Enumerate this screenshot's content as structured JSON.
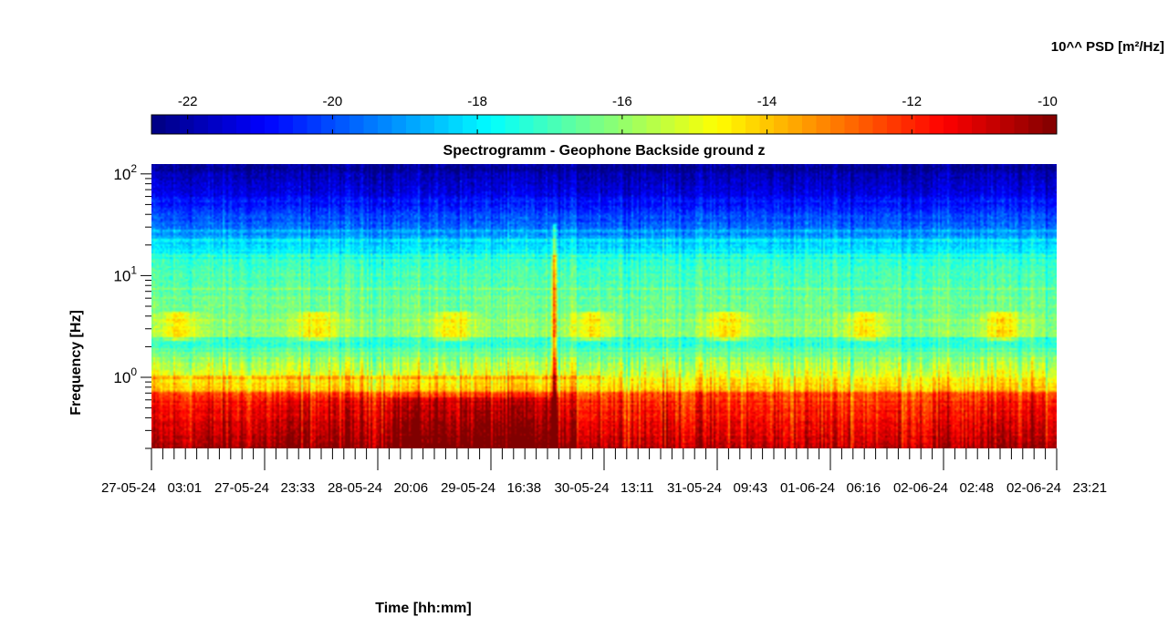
{
  "chart_data": {
    "type": "heatmap",
    "title": "Spectrogramm - Geophone Backside ground z",
    "xlabel": "Time [hh:mm]",
    "ylabel": "Frequency [Hz]",
    "yscale": "log",
    "ylim": [
      0.2,
      125
    ],
    "y_ticks": [
      {
        "value": 1,
        "base": "10",
        "exp": "0"
      },
      {
        "value": 10,
        "base": "10",
        "exp": "1"
      },
      {
        "value": 100,
        "base": "10",
        "exp": "2"
      }
    ],
    "x_tick_labels": [
      "27-05-24  03:01",
      "27-05-24  23:33",
      "28-05-24  20:06",
      "29-05-24  16:38",
      "30-05-24  13:11",
      "31-05-24  09:43",
      "01-06-24  06:16",
      "02-06-24  02:48",
      "02-06-24  23:21"
    ],
    "x_first_tick_label": "27-05-24  03:01",
    "x_minor_ticks_per_major": 10,
    "colorbar": {
      "label": "10^^ PSD [m²/Hz]",
      "range": [
        -22.5,
        -10
      ],
      "ticks": [
        -22,
        -20,
        -18,
        -16,
        -14,
        -12,
        -10
      ],
      "colormap": "jet",
      "location": "top"
    },
    "features": {
      "impulse_event": {
        "approx_time_fraction": 0.444,
        "fmax_hz": 30
      },
      "harmonic_lines_hz": [
        1.0,
        7.5,
        15.5,
        22,
        28
      ],
      "low_freq_band_hz": [
        0.2,
        0.7
      ],
      "daily_activity_band_hz": [
        2.5,
        4.0
      ]
    }
  }
}
